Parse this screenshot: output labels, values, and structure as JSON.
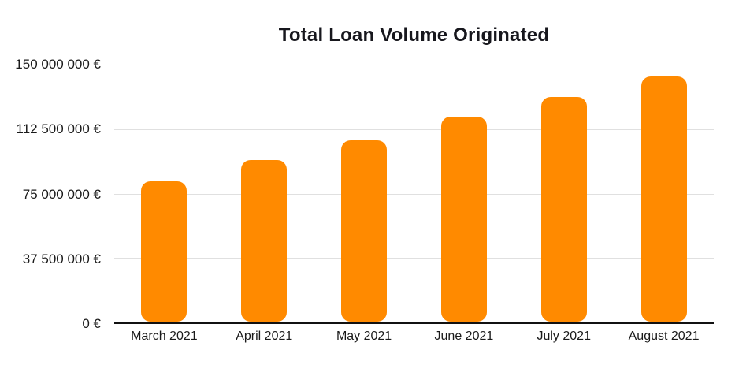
{
  "chart_data": {
    "type": "bar",
    "title": "Total Loan Volume Originated",
    "categories": [
      "March 2021",
      "April 2021",
      "May 2021",
      "June 2021",
      "July 2021",
      "August 2021"
    ],
    "values": [
      82500000,
      95000000,
      106500000,
      120000000,
      131500000,
      143500000
    ],
    "xlabel": "",
    "ylabel": "",
    "ylim": [
      0,
      150000000
    ],
    "yticks": [
      {
        "value": 0,
        "label": "0 €"
      },
      {
        "value": 37500000,
        "label": "37 500 000 €"
      },
      {
        "value": 75000000,
        "label": "75 000 000 €"
      },
      {
        "value": 112500000,
        "label": "112 500 000 €"
      },
      {
        "value": 150000000,
        "label": "150 000 000 €"
      }
    ],
    "grid": true,
    "legend": false,
    "colors": {
      "bar": "#FF8A00",
      "gridline": "#E0E0E0",
      "axis_line": "#111111",
      "tick_text": "#1A1A1A",
      "title_text": "#17171D"
    }
  }
}
